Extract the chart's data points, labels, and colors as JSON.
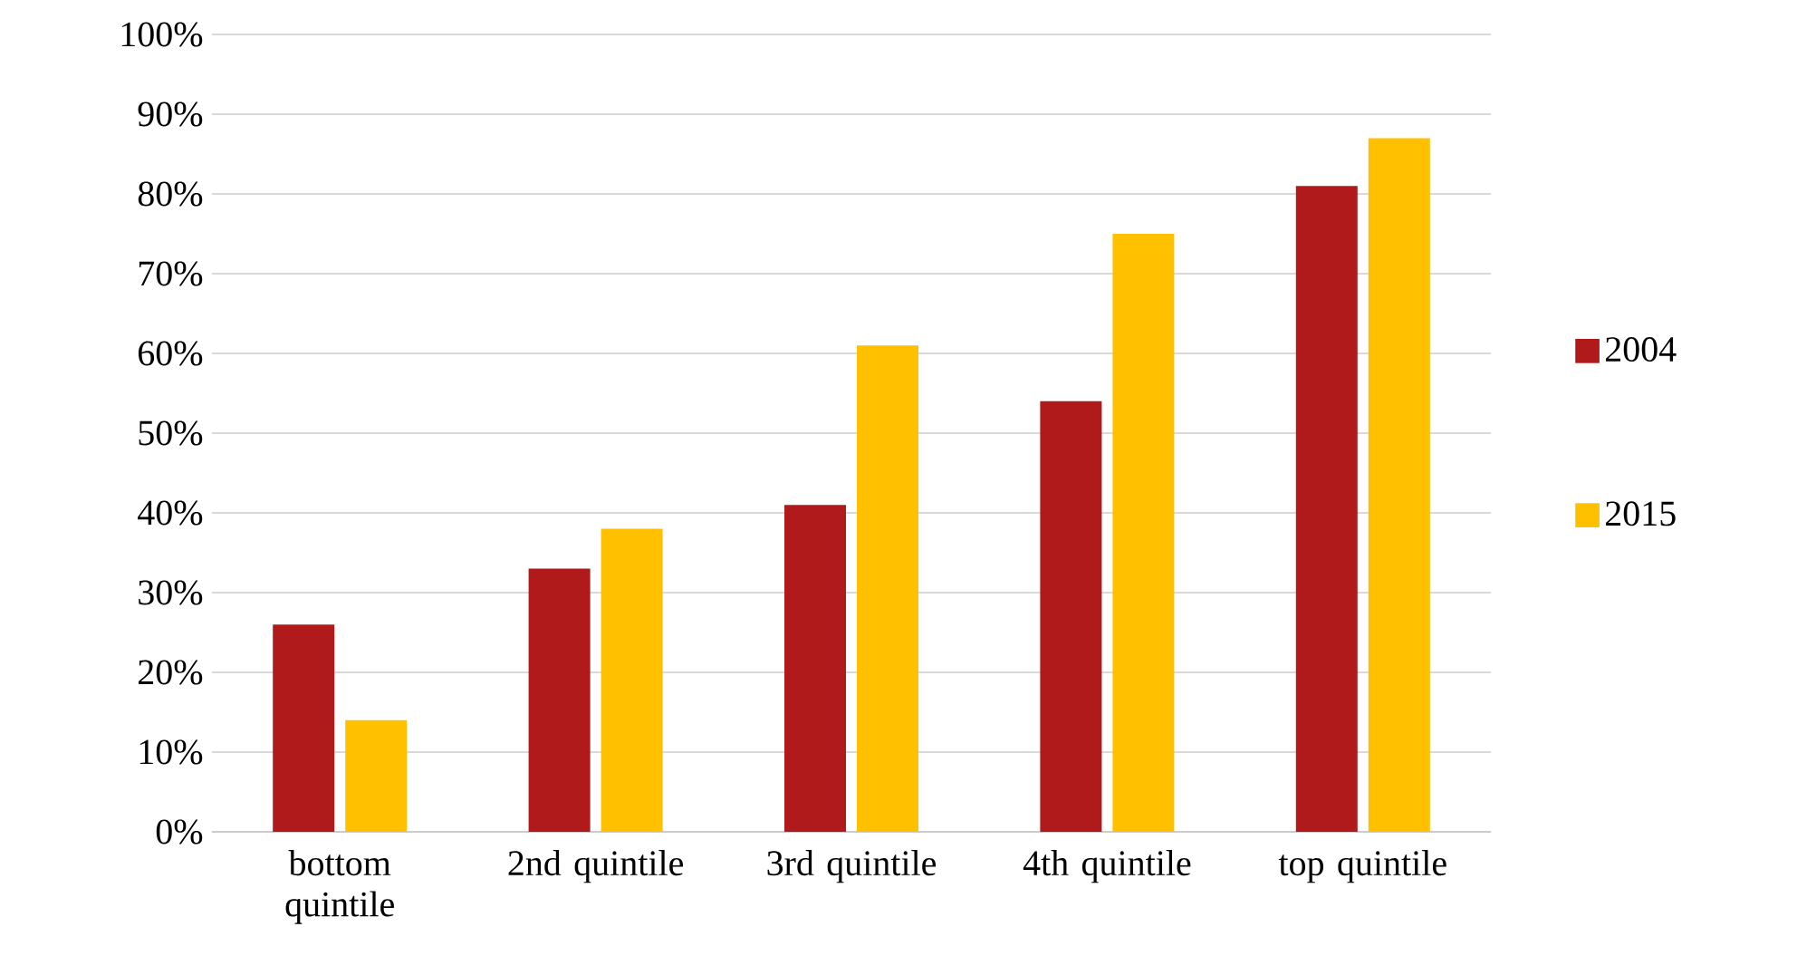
{
  "chart_data": {
    "type": "bar",
    "categories": [
      "bottom quintile",
      "2nd quintile",
      "3rd quintile",
      "4th quintile",
      "top quintile"
    ],
    "series": [
      {
        "name": "2004",
        "color": "#b01a1a",
        "values": [
          26,
          33,
          41,
          54,
          81
        ]
      },
      {
        "name": "2015",
        "color": "#ffc000",
        "values": [
          14,
          38,
          61,
          75,
          87
        ]
      }
    ],
    "ylim": [
      0,
      100
    ],
    "yticks": [
      {
        "value": 0,
        "label": "0%"
      },
      {
        "value": 10,
        "label": "10%"
      },
      {
        "value": 20,
        "label": "20%"
      },
      {
        "value": 30,
        "label": "30%"
      },
      {
        "value": 40,
        "label": "40%"
      },
      {
        "value": 50,
        "label": "50%"
      },
      {
        "value": 60,
        "label": "60%"
      },
      {
        "value": 70,
        "label": "70%"
      },
      {
        "value": 80,
        "label": "80%"
      },
      {
        "value": 90,
        "label": "90%"
      },
      {
        "value": 100,
        "label": "100%"
      }
    ],
    "grid": "y",
    "legend": "right"
  }
}
